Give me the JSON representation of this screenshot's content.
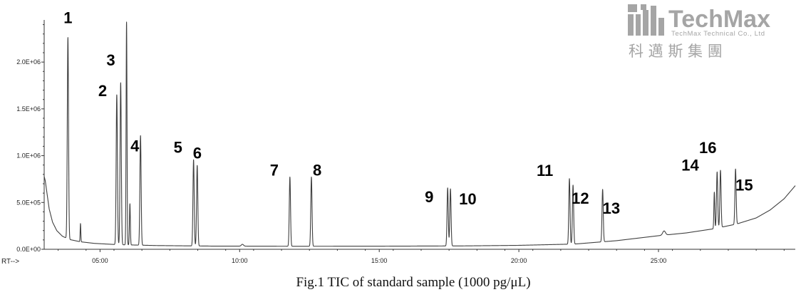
{
  "logo": {
    "name": "TechMax",
    "subtitle": "TechMax Technical Co., Ltd",
    "chinese": "科 邁 斯 集 團"
  },
  "caption": "Fig.1 TIC of standard sample (1000 pg/μL)",
  "chart_data": {
    "type": "line",
    "x_axis_label": "RT-->",
    "x_ticks": [
      500,
      1000,
      1500,
      2000,
      2500
    ],
    "x_tick_labels": [
      "05:00",
      "10:00",
      "15:00",
      "20:00",
      "25:00"
    ],
    "y_ticks": [
      0,
      500000,
      1000000,
      1500000,
      2000000
    ],
    "y_tick_labels": [
      "0.0E+00",
      "5.0E+05",
      "1.0E+06",
      "1.5E+06",
      "2.0E+06"
    ],
    "xlim": [
      300,
      2990
    ],
    "ylim": [
      0,
      2450000
    ],
    "baseline": [
      [
        300,
        780000
      ],
      [
        304,
        730000
      ],
      [
        310,
        600000
      ],
      [
        318,
        430000
      ],
      [
        330,
        290000
      ],
      [
        345,
        200000
      ],
      [
        365,
        140000
      ],
      [
        390,
        105000
      ],
      [
        430,
        80000
      ],
      [
        480,
        63000
      ],
      [
        560,
        50000
      ],
      [
        700,
        40000
      ],
      [
        900,
        34000
      ],
      [
        1200,
        32000
      ],
      [
        1500,
        33000
      ],
      [
        1800,
        36000
      ],
      [
        2000,
        42000
      ],
      [
        2200,
        56000
      ],
      [
        2350,
        92000
      ],
      [
        2500,
        145000
      ],
      [
        2600,
        175000
      ],
      [
        2700,
        220000
      ],
      [
        2780,
        270000
      ],
      [
        2850,
        335000
      ],
      [
        2900,
        420000
      ],
      [
        2950,
        540000
      ],
      [
        2990,
        680000
      ]
    ],
    "minor_peaks": [
      {
        "x": 430,
        "height": 195000,
        "width": 1.2
      },
      {
        "x": 1010,
        "height": 20000,
        "width": 4
      },
      {
        "x": 2520,
        "height": 45000,
        "width": 5
      }
    ],
    "peaks": [
      {
        "label": "1",
        "x": 385,
        "height": 2150000
      },
      {
        "label": "2",
        "x": 560,
        "height": 1600000
      },
      {
        "label": "3",
        "x": 574,
        "height": 1730000
      },
      {
        "label": "4",
        "x": 645,
        "height": 1170000
      },
      {
        "label": "5",
        "x": 835,
        "height": 920000
      },
      {
        "label": "6",
        "x": 848,
        "height": 860000
      },
      {
        "label": "7",
        "x": 1180,
        "height": 740000
      },
      {
        "label": "8",
        "x": 1257,
        "height": 740000
      },
      {
        "label": "9",
        "x": 1745,
        "height": 620000
      },
      {
        "label": "10",
        "x": 1755,
        "height": 610000
      },
      {
        "label": "11",
        "x": 2181,
        "height": 700000
      },
      {
        "label": "12",
        "x": 2194,
        "height": 630000
      },
      {
        "label": "13",
        "x": 2300,
        "height": 560000
      },
      {
        "label": "14",
        "x": 2710,
        "height": 600000
      },
      {
        "label": "16",
        "x": 2722,
        "height": 610000
      },
      {
        "label": "15",
        "x": 2776,
        "height": 590000
      }
    ],
    "unlabeled_peaks": [
      {
        "x": 595,
        "height": 2380000
      },
      {
        "x": 607,
        "height": 440000
      },
      {
        "x": 2700,
        "height": 390000
      }
    ],
    "colors": {
      "trace": "#3f3f3f",
      "axis": "#333333"
    }
  }
}
